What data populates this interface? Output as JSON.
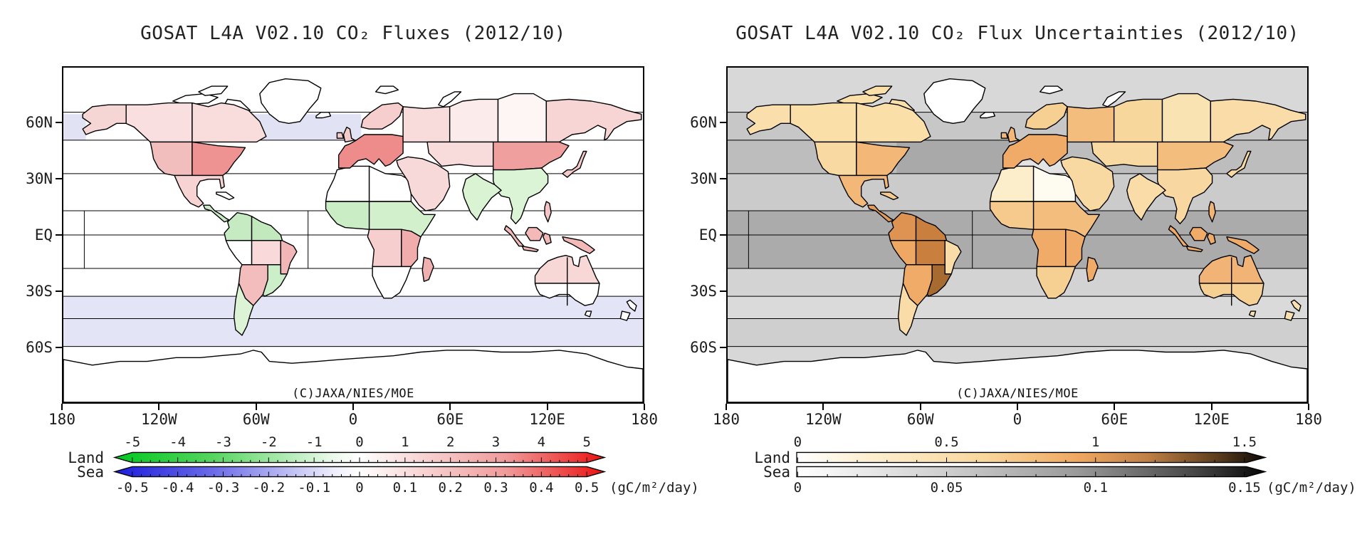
{
  "figure": {
    "panels": [
      {
        "id": "fluxes",
        "title": "GOSAT L4A V02.10 CO₂ Fluxes (2012/10)",
        "credit": "(C)JAXA/NIES/MOE",
        "lat_ticks": [
          "60N",
          "30N",
          "EQ",
          "30S",
          "60S"
        ],
        "lon_ticks": [
          "180",
          "120W",
          "60W",
          "0",
          "60E",
          "120E",
          "180"
        ],
        "sea_base": "#ffffff",
        "sea_bands": [
          {
            "lat": [
              65,
              51
            ],
            "lon": [
              -63,
              5
            ],
            "color": "#e2e2f5"
          },
          {
            "lat": [
              65,
              51
            ],
            "lon": [
              -180,
              -166
            ],
            "color": "#e2e2f5"
          },
          {
            "lat": [
              -33,
              -45
            ],
            "lon": [
              -180,
              180
            ],
            "color": "#e4e4f7"
          },
          {
            "lat": [
              -45,
              -60
            ],
            "lon": [
              -180,
              180
            ],
            "color": "#e4e4f7"
          }
        ],
        "region_colors": {
          "greenland": "#ffffff",
          "iceland": "#ffffff",
          "svalbard": "#ffffff",
          "arctic_islands": "#ffffff",
          "novaya_zemlya": "#ffffff",
          "alaska": "#f6d5d5",
          "canada_west": "#f9dfdf",
          "canada_east": "#f9dddd",
          "us_west": "#f2bdbd",
          "us_east": "#ee9292",
          "mexico": "#f7d3d3",
          "cuba": "#ffffff",
          "central_america": "#c9ecc5",
          "sa_nw": "#c6ebc2",
          "sa_ne": "#c1e9bd",
          "sa_w": "#ffffff",
          "sa_c": "#f9d9d9",
          "sa_e": "#f3b6b6",
          "sa_sc": "#f3bdbd",
          "sa_se": "#cceec8",
          "patagonia": "#dcf3d6",
          "af_nw": "#ffffff",
          "af_ne": "#ffffff",
          "af_w": "#caedc6",
          "af_e": "#d2f0cb",
          "af_sw": "#f7cece",
          "af_se": "#f1acac",
          "af_s": "#ffffff",
          "madagascar": "#f1b0b0",
          "uk": "#f4caca",
          "scandinavia": "#f6cece",
          "europe": "#ee8b8b",
          "europe_east": "#f8dbdb",
          "siberia_west": "#fcebeb",
          "siberia_central": "#fef5f5",
          "siberia_east": "#f7d5d5",
          "central_asia": "#f8dbdb",
          "mongolia_nechina": "#f09f9f",
          "china_se_asia": "#dbf4d5",
          "india": "#d9f3d3",
          "middle_east": "#f8d9d9",
          "japan": "#f5c9c9",
          "philippines": "#f5c5c5",
          "indonesia": "#f3b9b9",
          "new_guinea": "#f3b9b9",
          "australia_n": "#f8d7d7",
          "australia_s": "#ffffff",
          "tasmania": "#ffffff",
          "new_zealand": "#ffffff",
          "antarctica": "#ffffff"
        },
        "colorbar": {
          "land_label": "Land",
          "sea_label": "Sea",
          "unit": "(gC/m²/day)",
          "land_ticks": [
            "-5",
            "-4",
            "-3",
            "-2",
            "-1",
            "0",
            "1",
            "2",
            "3",
            "4",
            "5"
          ],
          "sea_ticks": [
            "-0.5",
            "-0.4",
            "-0.3",
            "-0.2",
            "-0.1",
            "0",
            "0.1",
            "0.2",
            "0.3",
            "0.4",
            "0.5"
          ],
          "land_gradient": [
            [
              0,
              "#00c820"
            ],
            [
              20,
              "#55d55f"
            ],
            [
              45,
              "#eefaee"
            ],
            [
              50,
              "#ffffff"
            ],
            [
              55,
              "#fceeee"
            ],
            [
              80,
              "#f09a9a"
            ],
            [
              100,
              "#ec1010"
            ]
          ],
          "sea_gradient": [
            [
              0,
              "#1c1cdc"
            ],
            [
              20,
              "#6a6ae8"
            ],
            [
              45,
              "#efeffc"
            ],
            [
              50,
              "#ffffff"
            ],
            [
              55,
              "#fceeee"
            ],
            [
              80,
              "#f09a9a"
            ],
            [
              100,
              "#ec1010"
            ]
          ],
          "arrows": "both"
        }
      },
      {
        "id": "uncertainties",
        "title": "GOSAT L4A V02.10 CO₂ Flux Uncertainties (2012/10)",
        "credit": "(C)JAXA/NIES/MOE",
        "lat_ticks": [
          "60N",
          "30N",
          "EQ",
          "30S",
          "60S"
        ],
        "lon_ticks": [
          "180",
          "120W",
          "60W",
          "0",
          "60E",
          "120E",
          "180"
        ],
        "sea_base": "#d8d8d8",
        "sea_bands": [
          {
            "lat": [
              66,
              51
            ],
            "lon": [
              -180,
              180
            ],
            "color": "#c7c7c7"
          },
          {
            "lat": [
              51,
              33
            ],
            "lon": [
              -180,
              180
            ],
            "color": "#bdbdbd"
          },
          {
            "lat": [
              51,
              33
            ],
            "lon": [
              -75,
              -5
            ],
            "color": "#a9a9a9"
          },
          {
            "lat": [
              33,
              13
            ],
            "lon": [
              -180,
              180
            ],
            "color": "#cbcbcb"
          },
          {
            "lat": [
              13,
              -18
            ],
            "lon": [
              -180,
              180
            ],
            "color": "#ababab"
          },
          {
            "lat": [
              -18,
              -33
            ],
            "lon": [
              -180,
              180
            ],
            "color": "#d3d3d3"
          },
          {
            "lat": [
              -33,
              -45
            ],
            "lon": [
              -180,
              180
            ],
            "color": "#dadada"
          },
          {
            "lat": [
              -45,
              -60
            ],
            "lon": [
              -180,
              180
            ],
            "color": "#cfcfcf"
          },
          {
            "lat": [
              -60,
              -90
            ],
            "lon": [
              -180,
              180
            ],
            "color": "#d7d7d7"
          },
          {
            "lat": [
              40,
              30
            ],
            "lon": [
              -1,
              36
            ],
            "color": "#e3e3e3"
          }
        ],
        "region_colors": {
          "greenland": "#ffffff",
          "iceland": "#ffffff",
          "svalbard": "#ffffff",
          "arctic_islands": "#fadfa9",
          "novaya_zemlya": "#ffffff",
          "alaska": "#fadfad",
          "canada_west": "#fadfa9",
          "canada_east": "#fadfa9",
          "us_west": "#f9d9a2",
          "us_east": "#f3b877",
          "mexico": "#f3b877",
          "cuba": "#f6c98c",
          "central_america": "#e29a59",
          "sa_nw": "#df9352",
          "sa_ne": "#c9803f",
          "sa_w": "#efa863",
          "sa_c": "#c9803f",
          "sa_e": "#f9dca8",
          "sa_sc": "#f0ab68",
          "sa_se": "#a76a31",
          "patagonia": "#f9dca8",
          "af_nw": "#fcedcb",
          "af_ne": "#fefbf0",
          "af_w": "#f6c98c",
          "af_e": "#f3bd7e",
          "af_sw": "#f0ab68",
          "af_se": "#f0ab68",
          "af_s": "#f6cf92",
          "madagascar": "#f0ab68",
          "uk": "#f3b877",
          "scandinavia": "#f6cf92",
          "europe": "#f0ab68",
          "europe_east": "#f3bd7e",
          "siberia_west": "#f8d79c",
          "siberia_central": "#fae3b2",
          "siberia_east": "#f9dca8",
          "central_asia": "#f8d9a1",
          "mongolia_nechina": "#f3bd7e",
          "china_se_asia": "#f8d8a0",
          "india": "#f9dca8",
          "middle_east": "#f8d9a1",
          "japan": "#f8d9a1",
          "philippines": "#f2b377",
          "indonesia": "#f0ab68",
          "new_guinea": "#f0ab68",
          "australia_n": "#f2b377",
          "australia_s": "#f6cf92",
          "tasmania": "#f9e0b0",
          "new_zealand": "#f9e0b0",
          "antarctica": "#ffffff"
        },
        "colorbar": {
          "land_label": "Land",
          "sea_label": "Sea",
          "unit": "(gC/m²/day)",
          "land_ticks": [
            "0",
            "0.5",
            "1",
            "1.5"
          ],
          "sea_ticks": [
            "0",
            "0.05",
            "0.1",
            "0.15"
          ],
          "land_gradient": [
            [
              0,
              "#ffffff"
            ],
            [
              15,
              "#fdf0d2"
            ],
            [
              40,
              "#f9d79c"
            ],
            [
              60,
              "#f0a860"
            ],
            [
              75,
              "#c07f45"
            ],
            [
              90,
              "#5a3c1c"
            ],
            [
              100,
              "#0a0805"
            ]
          ],
          "sea_gradient": [
            [
              0,
              "#ffffff"
            ],
            [
              30,
              "#d2d2d2"
            ],
            [
              60,
              "#9a9a9a"
            ],
            [
              85,
              "#464646"
            ],
            [
              100,
              "#050505"
            ]
          ],
          "arrows": "right"
        }
      }
    ]
  },
  "chart_data": [
    {
      "type": "choropleth-map",
      "title": "GOSAT L4A V02.10 CO₂ Fluxes (2012/10)",
      "credit": "(C)JAXA/NIES/MOE",
      "projection": "equirectangular",
      "lon_ticks": [
        "180",
        "120W",
        "60W",
        "0",
        "60E",
        "120E",
        "180"
      ],
      "lat_ticks": [
        "60N",
        "30N",
        "EQ",
        "30S",
        "60S"
      ],
      "unit": "gC/m²/day",
      "land_scale": {
        "min": -5,
        "max": 5,
        "ticks": [
          -5,
          -4,
          -3,
          -2,
          -1,
          0,
          1,
          2,
          3,
          4,
          5
        ],
        "palette": "green→white→red",
        "extend": "both"
      },
      "sea_scale": {
        "min": -0.5,
        "max": 0.5,
        "ticks": [
          -0.5,
          -0.4,
          -0.3,
          -0.2,
          -0.1,
          0,
          0.1,
          0.2,
          0.3,
          0.4,
          0.5
        ],
        "palette": "blue→white→red",
        "extend": "both"
      },
      "land_region_values_est": {
        "greenland": 0,
        "iceland": 0,
        "svalbard": 0,
        "arctic_islands": 0.2,
        "novaya_zemlya": 0,
        "alaska": 0.6,
        "canada_west": 0.5,
        "canada_east": 0.5,
        "us_west": 1.6,
        "us_east": 2.6,
        "mexico": 0.9,
        "cuba": 0.1,
        "central_america": -1.4,
        "sa_nw": -1.6,
        "sa_ne": -1.7,
        "sa_w": 0.1,
        "sa_c": 0.9,
        "sa_e": 1.9,
        "sa_sc": 1.7,
        "sa_se": -1.4,
        "patagonia": -0.9,
        "af_nw": 0.1,
        "af_ne": 0,
        "af_w": -1.4,
        "af_e": -1.2,
        "af_sw": 1.1,
        "af_se": 2.1,
        "af_s": 0.1,
        "madagascar": 1.9,
        "uk": 1.2,
        "scandinavia": 1.2,
        "europe": 2.9,
        "europe_east": 0.9,
        "siberia_west": 0.4,
        "siberia_central": 0.2,
        "siberia_east": 0.9,
        "central_asia": 0.9,
        "mongolia_nechina": 2.3,
        "china_se_asia": -0.9,
        "india": -1.0,
        "middle_east": 0.8,
        "japan": 1.1,
        "philippines": 1.3,
        "indonesia": 1.7,
        "new_guinea": 1.7,
        "australia_n": 0.9,
        "australia_s": 0.1,
        "tasmania": 0,
        "new_zealand": 0.1,
        "antarctica": 0
      },
      "sea_region_values_est": {
        "north_atlantic_51N_65N": -0.05,
        "bering_sea": -0.05,
        "southern_ocean_33S_60S": -0.05,
        "other_oceans": 0
      }
    },
    {
      "type": "choropleth-map",
      "title": "GOSAT L4A V02.10 CO₂ Flux Uncertainties (2012/10)",
      "credit": "(C)JAXA/NIES/MOE",
      "projection": "equirectangular",
      "lon_ticks": [
        "180",
        "120W",
        "60W",
        "0",
        "60E",
        "120E",
        "180"
      ],
      "lat_ticks": [
        "60N",
        "30N",
        "EQ",
        "30S",
        "60S"
      ],
      "unit": "gC/m²/day",
      "land_scale": {
        "min": 0,
        "max": 1.5,
        "ticks": [
          0,
          0.5,
          1,
          1.5
        ],
        "palette": "white→orange→brown→black",
        "extend": "max"
      },
      "sea_scale": {
        "min": 0,
        "max": 0.15,
        "ticks": [
          0,
          0.05,
          0.1,
          0.15
        ],
        "palette": "white→gray→black",
        "extend": "max"
      },
      "land_region_values_est": {
        "greenland": 0.02,
        "iceland": 0.3,
        "svalbard": 0.05,
        "arctic_islands": 0.35,
        "novaya_zemlya": 0.1,
        "alaska": 0.4,
        "canada_west": 0.4,
        "canada_east": 0.4,
        "us_west": 0.5,
        "us_east": 0.75,
        "mexico": 0.75,
        "cuba": 0.6,
        "central_america": 1.0,
        "sa_nw": 1.05,
        "sa_ne": 1.2,
        "sa_w": 0.9,
        "sa_c": 1.2,
        "sa_e": 0.55,
        "sa_sc": 0.85,
        "sa_se": 1.35,
        "patagonia": 0.55,
        "af_nw": 0.25,
        "af_ne": 0.05,
        "af_w": 0.6,
        "af_e": 0.8,
        "af_sw": 0.85,
        "af_se": 0.85,
        "af_s": 0.6,
        "madagascar": 0.85,
        "uk": 0.75,
        "scandinavia": 0.6,
        "europe": 0.85,
        "europe_east": 0.8,
        "siberia_west": 0.55,
        "siberia_central": 0.45,
        "siberia_east": 0.55,
        "central_asia": 0.55,
        "mongolia_nechina": 0.8,
        "china_se_asia": 0.55,
        "india": 0.5,
        "middle_east": 0.55,
        "japan": 0.55,
        "philippines": 0.75,
        "indonesia": 0.85,
        "new_guinea": 0.85,
        "australia_n": 0.75,
        "australia_s": 0.6,
        "tasmania": 0.5,
        "new_zealand": 0.45,
        "antarctica": 0.02
      },
      "sea_region_values_est": {
        "arctic": 0.04,
        "north_pacific_33N_51N": 0.06,
        "north_atlantic_33N_51N": 0.09,
        "subtropics_13N_33N": 0.05,
        "tropics_13N_18S": 0.08,
        "south_subtropics_18S_33S": 0.04,
        "midlat_33S_45S": 0.03,
        "southern_ocean_45S_60S": 0.05,
        "below_60S": 0.04
      }
    }
  ]
}
